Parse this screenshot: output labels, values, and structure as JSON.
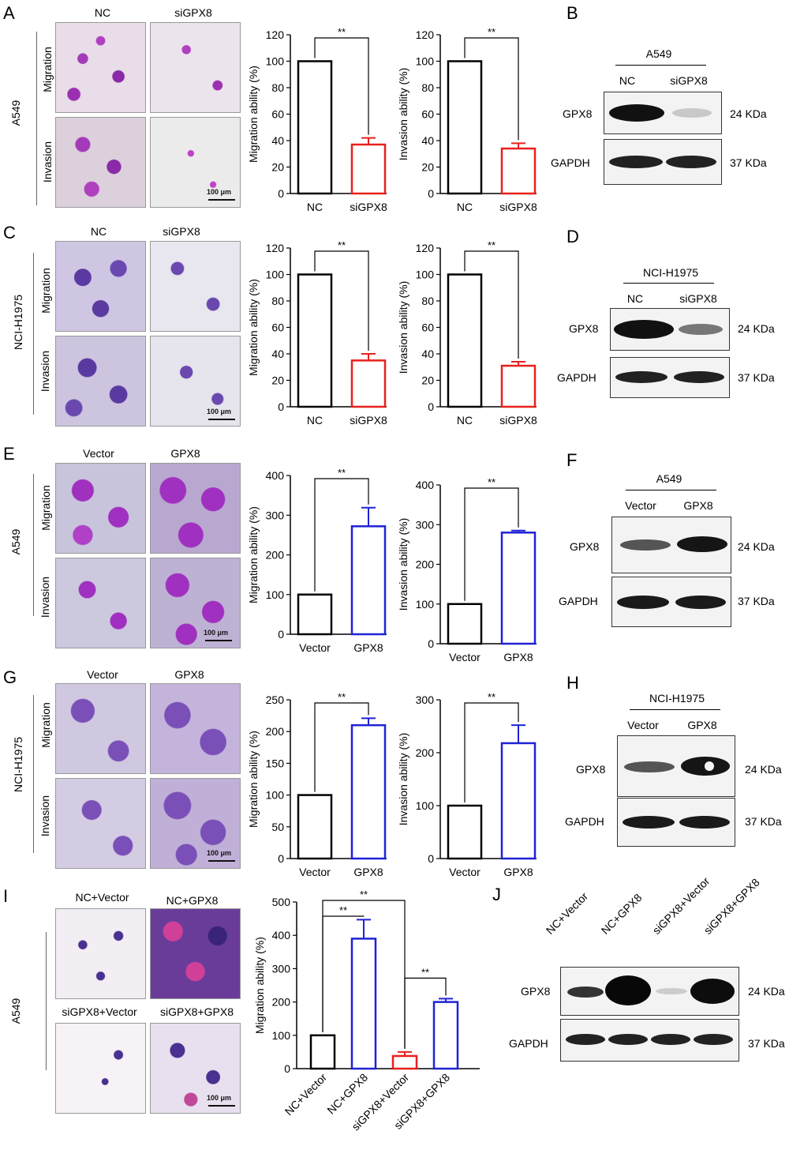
{
  "panels": {
    "A": {
      "letter": "A",
      "cell": "A549",
      "cols": [
        "NC",
        "siGPX8"
      ],
      "rows": [
        "Migration",
        "Invasion"
      ],
      "scale": "100 μm"
    },
    "B": {
      "letter": "B",
      "cell": "A549",
      "cols": [
        "NC",
        "siGPX8"
      ],
      "bands": [
        "GPX8",
        "GAPDH"
      ],
      "sizes": [
        "24 KDa",
        "37 KDa"
      ]
    },
    "C": {
      "letter": "C",
      "cell": "NCI-H1975",
      "cols": [
        "NC",
        "siGPX8"
      ],
      "rows": [
        "Migration",
        "Invasion"
      ],
      "scale": "100 μm"
    },
    "D": {
      "letter": "D",
      "cell": "NCI-H1975",
      "cols": [
        "NC",
        "siGPX8"
      ],
      "bands": [
        "GPX8",
        "GAPDH"
      ],
      "sizes": [
        "24 KDa",
        "37 KDa"
      ]
    },
    "E": {
      "letter": "E",
      "cell": "A549",
      "cols": [
        "Vector",
        "GPX8"
      ],
      "rows": [
        "Migration",
        "Invasion"
      ],
      "scale": "100 μm"
    },
    "F": {
      "letter": "F",
      "cell": "A549",
      "cols": [
        "Vector",
        "GPX8"
      ],
      "bands": [
        "GPX8",
        "GAPDH"
      ],
      "sizes": [
        "24 KDa",
        "37 KDa"
      ]
    },
    "G": {
      "letter": "G",
      "cell": "NCI-H1975",
      "cols": [
        "Vector",
        "GPX8"
      ],
      "rows": [
        "Migration",
        "Invasion"
      ],
      "scale": "100 μm"
    },
    "H": {
      "letter": "H",
      "cell": "NCI-H1975",
      "cols": [
        "Vector",
        "GPX8"
      ],
      "bands": [
        "GPX8",
        "GAPDH"
      ],
      "sizes": [
        "24 KDa",
        "37 KDa"
      ]
    },
    "I": {
      "letter": "I",
      "cell": "A549",
      "cols": [
        "NC+Vector",
        "NC+GPX8",
        "siGPX8+Vector",
        "siGPX8+GPX8"
      ],
      "scale": "100 μm"
    },
    "J": {
      "letter": "J",
      "cols": [
        "NC+Vector",
        "NC+GPX8",
        "siGPX8+Vector",
        "siGPX8+GPX8"
      ],
      "bands": [
        "GPX8",
        "GAPDH"
      ],
      "sizes": [
        "24 KDa",
        "37 KDa"
      ]
    }
  },
  "chart_data": [
    {
      "id": "A-mig",
      "type": "bar",
      "ylabel": "Migration ability (%)",
      "categories": [
        "NC",
        "siGPX8"
      ],
      "values": [
        100,
        37
      ],
      "errors": [
        0,
        5
      ],
      "ylim": [
        0,
        120
      ],
      "yticks": [
        0,
        20,
        40,
        60,
        80,
        100,
        120
      ],
      "colors": [
        "#000000",
        "#e8201c"
      ],
      "sig": [
        {
          "from": 0,
          "to": 1,
          "label": "**"
        }
      ]
    },
    {
      "id": "A-inv",
      "type": "bar",
      "ylabel": "Invasion ability (%)",
      "categories": [
        "NC",
        "siGPX8"
      ],
      "values": [
        100,
        34
      ],
      "errors": [
        0,
        4
      ],
      "ylim": [
        0,
        120
      ],
      "yticks": [
        0,
        20,
        40,
        60,
        80,
        100,
        120
      ],
      "colors": [
        "#000000",
        "#e8201c"
      ],
      "sig": [
        {
          "from": 0,
          "to": 1,
          "label": "**"
        }
      ]
    },
    {
      "id": "C-mig",
      "type": "bar",
      "ylabel": "Migration ability (%)",
      "categories": [
        "NC",
        "siGPX8"
      ],
      "values": [
        100,
        35
      ],
      "errors": [
        0,
        5
      ],
      "ylim": [
        0,
        120
      ],
      "yticks": [
        0,
        20,
        40,
        60,
        80,
        100,
        120
      ],
      "colors": [
        "#000000",
        "#e8201c"
      ],
      "sig": [
        {
          "from": 0,
          "to": 1,
          "label": "**"
        }
      ]
    },
    {
      "id": "C-inv",
      "type": "bar",
      "ylabel": "Invasion ability (%)",
      "categories": [
        "NC",
        "siGPX8"
      ],
      "values": [
        100,
        31
      ],
      "errors": [
        0,
        3
      ],
      "ylim": [
        0,
        120
      ],
      "yticks": [
        0,
        20,
        40,
        60,
        80,
        100,
        120
      ],
      "colors": [
        "#000000",
        "#e8201c"
      ],
      "sig": [
        {
          "from": 0,
          "to": 1,
          "label": "**"
        }
      ]
    },
    {
      "id": "E-mig",
      "type": "bar",
      "ylabel": "Migration ability (%)",
      "categories": [
        "Vector",
        "GPX8"
      ],
      "values": [
        100,
        272
      ],
      "errors": [
        0,
        47
      ],
      "ylim": [
        0,
        400
      ],
      "yticks": [
        0,
        100,
        200,
        300,
        400
      ],
      "colors": [
        "#000000",
        "#1f22d6"
      ],
      "sig": [
        {
          "from": 0,
          "to": 1,
          "label": "**"
        }
      ]
    },
    {
      "id": "E-inv",
      "type": "bar",
      "ylabel": "Invasion ability (%)",
      "categories": [
        "Vector",
        "GPX8"
      ],
      "values": [
        100,
        280
      ],
      "errors": [
        0,
        5
      ],
      "ylim": [
        0,
        400
      ],
      "yticks": [
        0,
        100,
        200,
        300,
        400
      ],
      "colors": [
        "#000000",
        "#1f22d6"
      ],
      "sig": [
        {
          "from": 0,
          "to": 1,
          "label": "**"
        }
      ]
    },
    {
      "id": "G-mig",
      "type": "bar",
      "ylabel": "Migration ability (%)",
      "categories": [
        "Vector",
        "GPX8"
      ],
      "values": [
        100,
        210
      ],
      "errors": [
        0,
        11
      ],
      "ylim": [
        0,
        250
      ],
      "yticks": [
        0,
        50,
        100,
        150,
        200,
        250
      ],
      "colors": [
        "#000000",
        "#1f22d6"
      ],
      "sig": [
        {
          "from": 0,
          "to": 1,
          "label": "**"
        }
      ]
    },
    {
      "id": "G-inv",
      "type": "bar",
      "ylabel": "Invasion ability (%)",
      "categories": [
        "Vector",
        "GPX8"
      ],
      "values": [
        100,
        218
      ],
      "errors": [
        0,
        34
      ],
      "ylim": [
        0,
        300
      ],
      "yticks": [
        0,
        100,
        200,
        300
      ],
      "colors": [
        "#000000",
        "#1f22d6"
      ],
      "sig": [
        {
          "from": 0,
          "to": 1,
          "label": "**"
        }
      ]
    },
    {
      "id": "I-mig",
      "type": "bar",
      "ylabel": "Migration ability (%)",
      "categories": [
        "NC+Vector",
        "NC+GPX8",
        "siGPX8+Vector",
        "siGPX8+GPX8"
      ],
      "values": [
        100,
        390,
        38,
        200
      ],
      "errors": [
        0,
        57,
        12,
        10
      ],
      "ylim": [
        0,
        500
      ],
      "yticks": [
        0,
        100,
        200,
        300,
        400,
        500
      ],
      "colors": [
        "#000000",
        "#1f22d6",
        "#e8201c",
        "#1f22d6"
      ],
      "sig": [
        {
          "from": 0,
          "to": 2,
          "label": "**"
        },
        {
          "from": 0,
          "to": 1,
          "label": "**"
        },
        {
          "from": 2,
          "to": 3,
          "label": "**"
        }
      ]
    }
  ]
}
